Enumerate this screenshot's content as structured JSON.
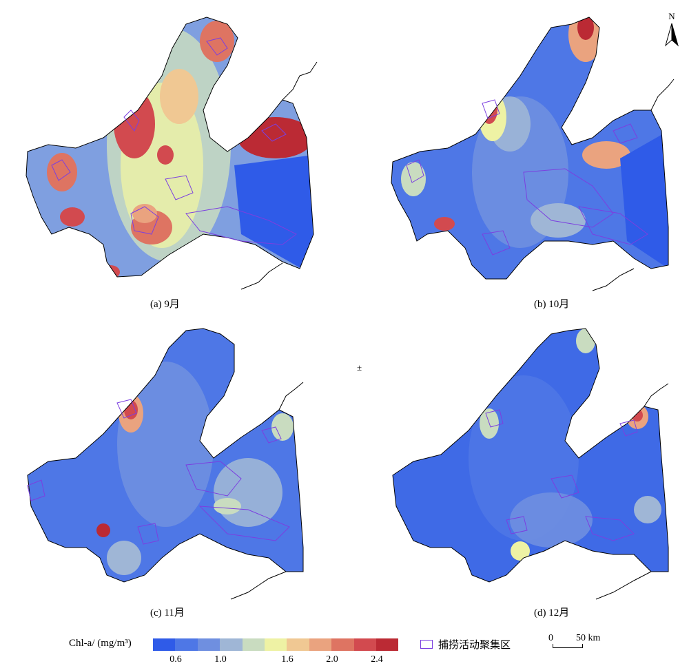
{
  "panels": [
    {
      "id": "a",
      "caption": "(a) 9月"
    },
    {
      "id": "b",
      "caption": "(b) 10月"
    },
    {
      "id": "c",
      "caption": "(c) 11月"
    },
    {
      "id": "d",
      "caption": "(d) 12月"
    }
  ],
  "legend": {
    "title": "Chl-a/ (mg/m³)",
    "tick_labels": [
      "0.6",
      "1.0",
      "1.6",
      "2.0",
      "2.4"
    ],
    "colors": [
      "#2f5be8",
      "#4e77e6",
      "#6f8fe0",
      "#9fb6d6",
      "#c9dcc0",
      "#eef2a4",
      "#f0c893",
      "#eaa37f",
      "#de7462",
      "#d24a4f",
      "#bb2a34"
    ],
    "fishing_area_label": "捕捞活动聚集区",
    "fishing_area_color": "#7b3fe0"
  },
  "scale_bar": {
    "start": "0",
    "end": "50 km"
  },
  "north_arrow": {
    "label": "N"
  },
  "center_mark": "±"
}
